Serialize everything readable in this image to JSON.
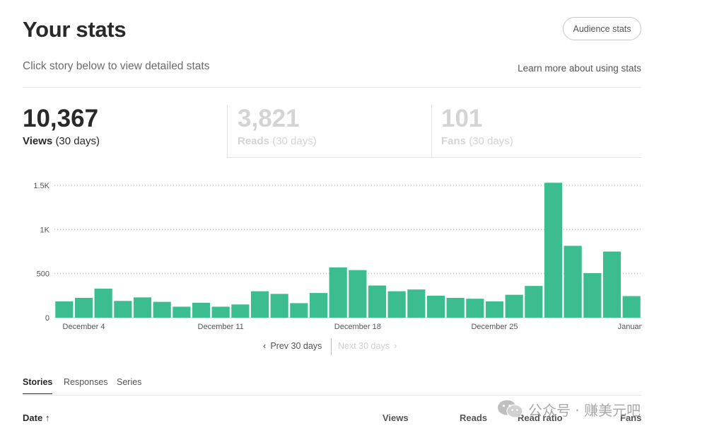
{
  "header": {
    "title": "Your stats",
    "audience_button": "Audience stats",
    "subtitle": "Click story below to view detailed stats",
    "learn_more": "Learn more about using stats"
  },
  "stats": {
    "views": {
      "number": "10,367",
      "label": "Views",
      "period": "(30 days)"
    },
    "reads": {
      "number": "3,821",
      "label": "Reads",
      "period": "(30 days)"
    },
    "fans": {
      "number": "101",
      "label": "Fans",
      "period": "(30 days)"
    }
  },
  "chart_data": {
    "type": "bar",
    "title": "Views (30 days)",
    "xlabel": "",
    "ylabel": "",
    "ylim": [
      0,
      1500
    ],
    "yticks": [
      0,
      500,
      1000,
      1500
    ],
    "ytick_labels": [
      "0",
      "500",
      "1K",
      "1.5K"
    ],
    "x_labels": [
      {
        "index": 1,
        "label": "December 4"
      },
      {
        "index": 8,
        "label": "December 11"
      },
      {
        "index": 15,
        "label": "December 18"
      },
      {
        "index": 22,
        "label": "December 25"
      },
      {
        "index": 29,
        "label": "January"
      }
    ],
    "categories": [
      "Dec 3",
      "Dec 4",
      "Dec 5",
      "Dec 6",
      "Dec 7",
      "Dec 8",
      "Dec 9",
      "Dec 10",
      "Dec 11",
      "Dec 12",
      "Dec 13",
      "Dec 14",
      "Dec 15",
      "Dec 16",
      "Dec 17",
      "Dec 18",
      "Dec 19",
      "Dec 20",
      "Dec 21",
      "Dec 22",
      "Dec 23",
      "Dec 24",
      "Dec 25",
      "Dec 26",
      "Dec 27",
      "Dec 28",
      "Dec 29",
      "Dec 30",
      "Dec 31",
      "Jan 1"
    ],
    "values": [
      185,
      225,
      330,
      190,
      230,
      180,
      125,
      170,
      125,
      150,
      300,
      270,
      165,
      280,
      570,
      540,
      365,
      300,
      320,
      250,
      225,
      215,
      185,
      260,
      360,
      1530,
      815,
      505,
      750,
      245
    ],
    "color": "#3bbd8f"
  },
  "pager": {
    "prev": "Prev 30 days",
    "next": "Next 30 days"
  },
  "tabs": [
    "Stories",
    "Responses",
    "Series"
  ],
  "table": {
    "date": "Date",
    "views": "Views",
    "reads": "Reads",
    "read_ratio": "Read ratio",
    "fans": "Fans"
  },
  "watermark": {
    "text": "公众号 · 赚美元吧"
  }
}
